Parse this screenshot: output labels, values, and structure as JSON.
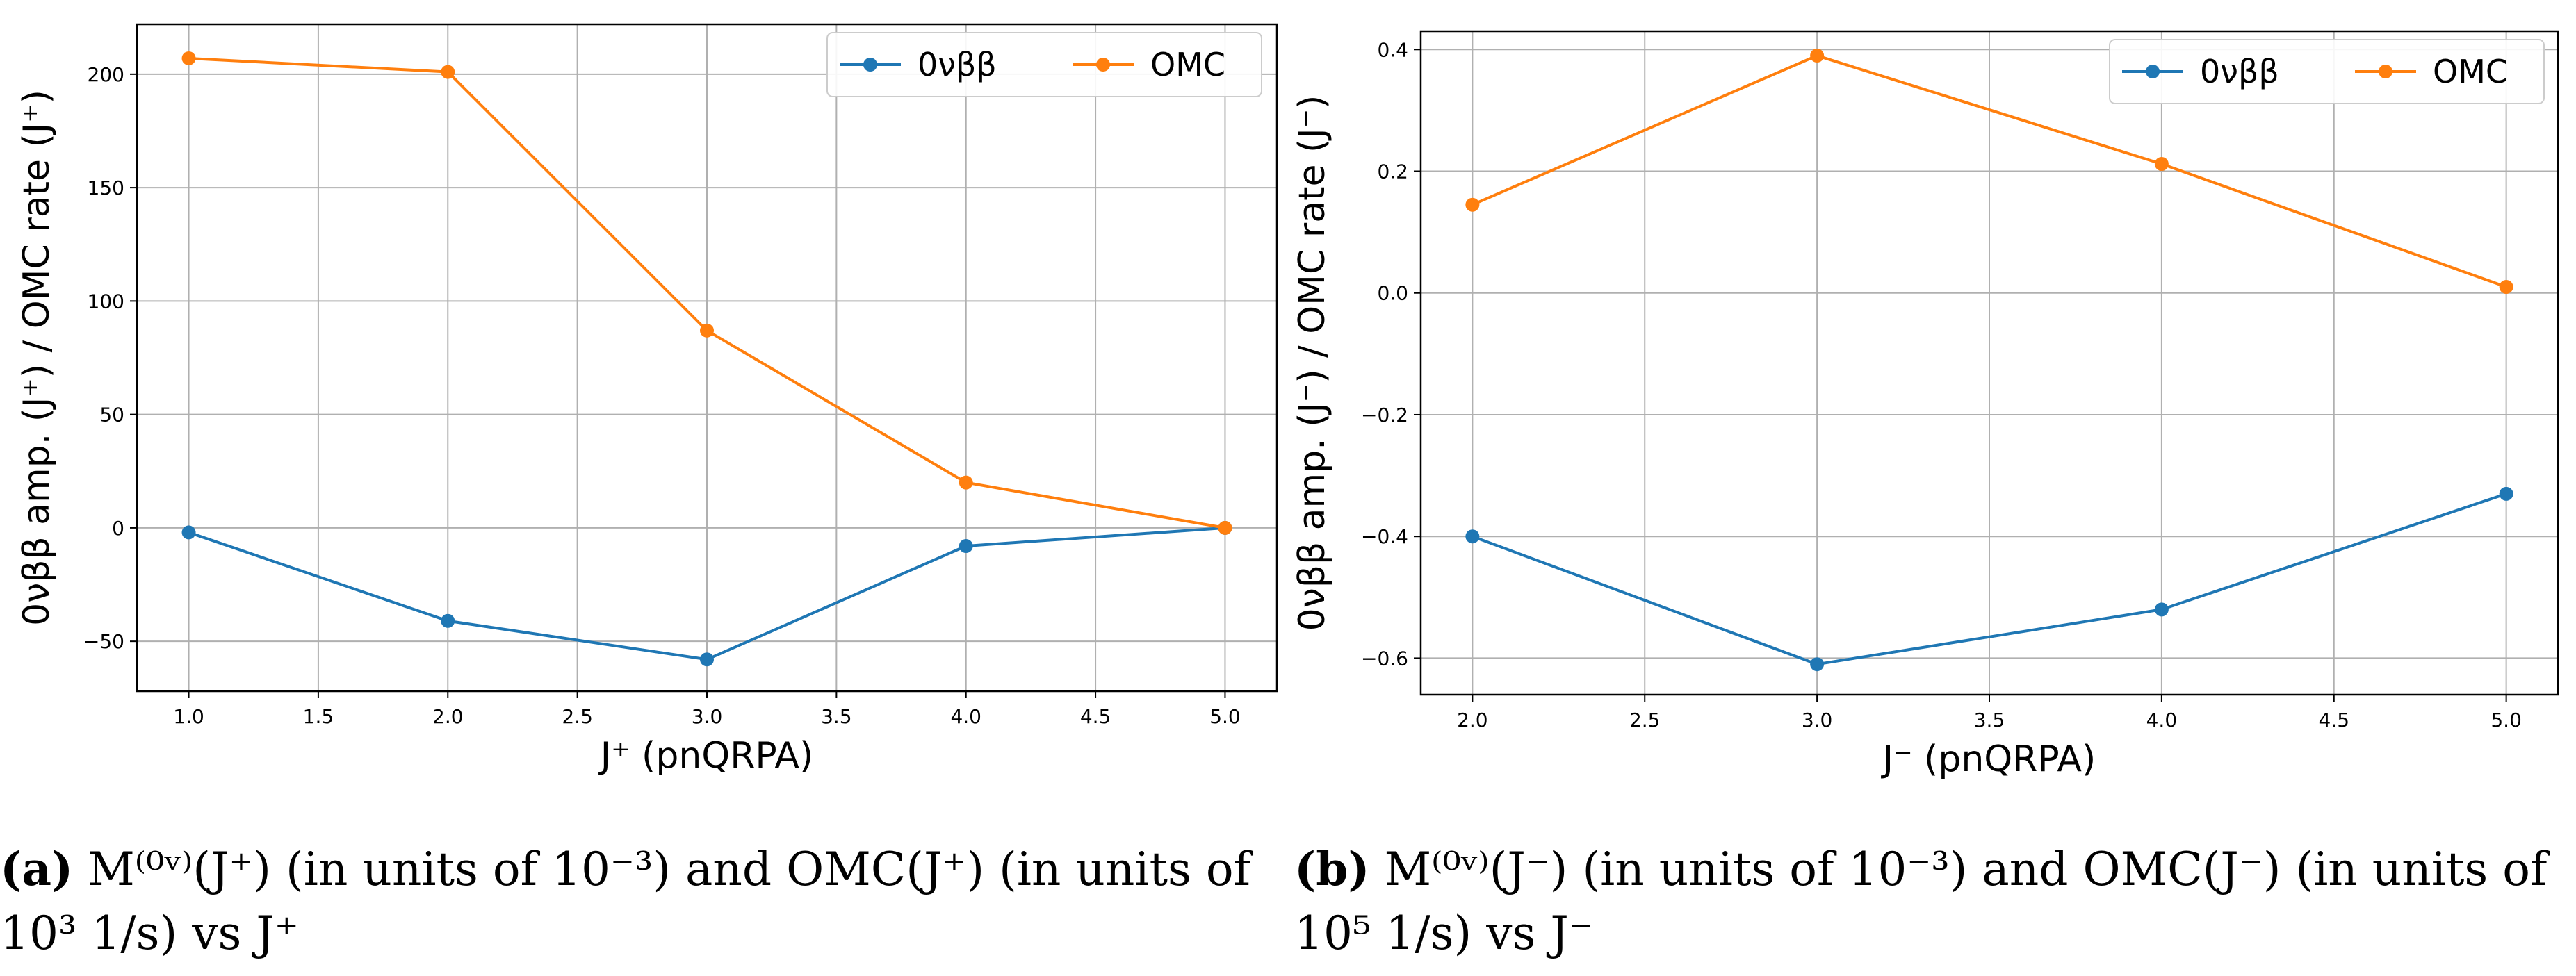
{
  "colors": {
    "series1": "#1f77b4",
    "series2": "#ff7f0e",
    "grid": "#b0b0b0",
    "axis": "#000000"
  },
  "chart_data": [
    {
      "type": "line",
      "title": "",
      "xlabel": "J⁺ (pnQRPA)",
      "ylabel": "0νββ amp. (J⁺) / OMC rate (J⁺)",
      "xlim": [
        0.8,
        5.2
      ],
      "ylim": [
        -72,
        222
      ],
      "xticks": [
        1.0,
        1.5,
        2.0,
        2.5,
        3.0,
        3.5,
        4.0,
        4.5,
        5.0
      ],
      "xtick_labels": [
        "1.0",
        "1.5",
        "2.0",
        "2.5",
        "3.0",
        "3.5",
        "4.0",
        "4.5",
        "5.0"
      ],
      "yticks": [
        -50,
        0,
        50,
        100,
        150,
        200
      ],
      "ytick_labels": [
        "−50",
        "0",
        "50",
        "100",
        "150",
        "200"
      ],
      "grid": true,
      "legend_position": "top-right",
      "x": [
        1.0,
        2.0,
        3.0,
        4.0,
        5.0
      ],
      "series": [
        {
          "name": "0νββ",
          "values": [
            -2,
            -41,
            -58,
            -8,
            0
          ]
        },
        {
          "name": "OMC",
          "values": [
            207,
            201,
            87,
            20,
            0
          ]
        }
      ]
    },
    {
      "type": "line",
      "title": "",
      "xlabel": "J⁻ (pnQRPA)",
      "ylabel": "0νββ amp. (J⁻) / OMC rate (J⁻)",
      "xlim": [
        1.85,
        5.15
      ],
      "ylim": [
        -0.66,
        0.43
      ],
      "xticks": [
        2.0,
        2.5,
        3.0,
        3.5,
        4.0,
        4.5,
        5.0
      ],
      "xtick_labels": [
        "2.0",
        "2.5",
        "3.0",
        "3.5",
        "4.0",
        "4.5",
        "5.0"
      ],
      "yticks": [
        -0.6,
        -0.4,
        -0.2,
        0.0,
        0.2,
        0.4
      ],
      "ytick_labels": [
        "−0.6",
        "−0.4",
        "−0.2",
        "0.0",
        "0.2",
        "0.4"
      ],
      "grid": true,
      "legend_position": "top-right",
      "x": [
        2.0,
        3.0,
        4.0,
        5.0
      ],
      "series": [
        {
          "name": "0νββ",
          "values": [
            -0.4,
            -0.61,
            -0.52,
            -0.33
          ]
        },
        {
          "name": "OMC",
          "values": [
            0.145,
            0.39,
            0.212,
            0.01
          ]
        }
      ]
    }
  ],
  "captions": {
    "a": {
      "label": "(a)",
      "text": "M⁽⁰ᵛ⁾(J⁺) (in units of 10⁻³) and OMC(J⁺) (in units of 10³ 1/s) vs J⁺"
    },
    "b": {
      "label": "(b)",
      "text": "M⁽⁰ᵛ⁾(J⁻) (in units of 10⁻³) and OMC(J⁻) (in units of 10⁵ 1/s) vs J⁻"
    }
  }
}
